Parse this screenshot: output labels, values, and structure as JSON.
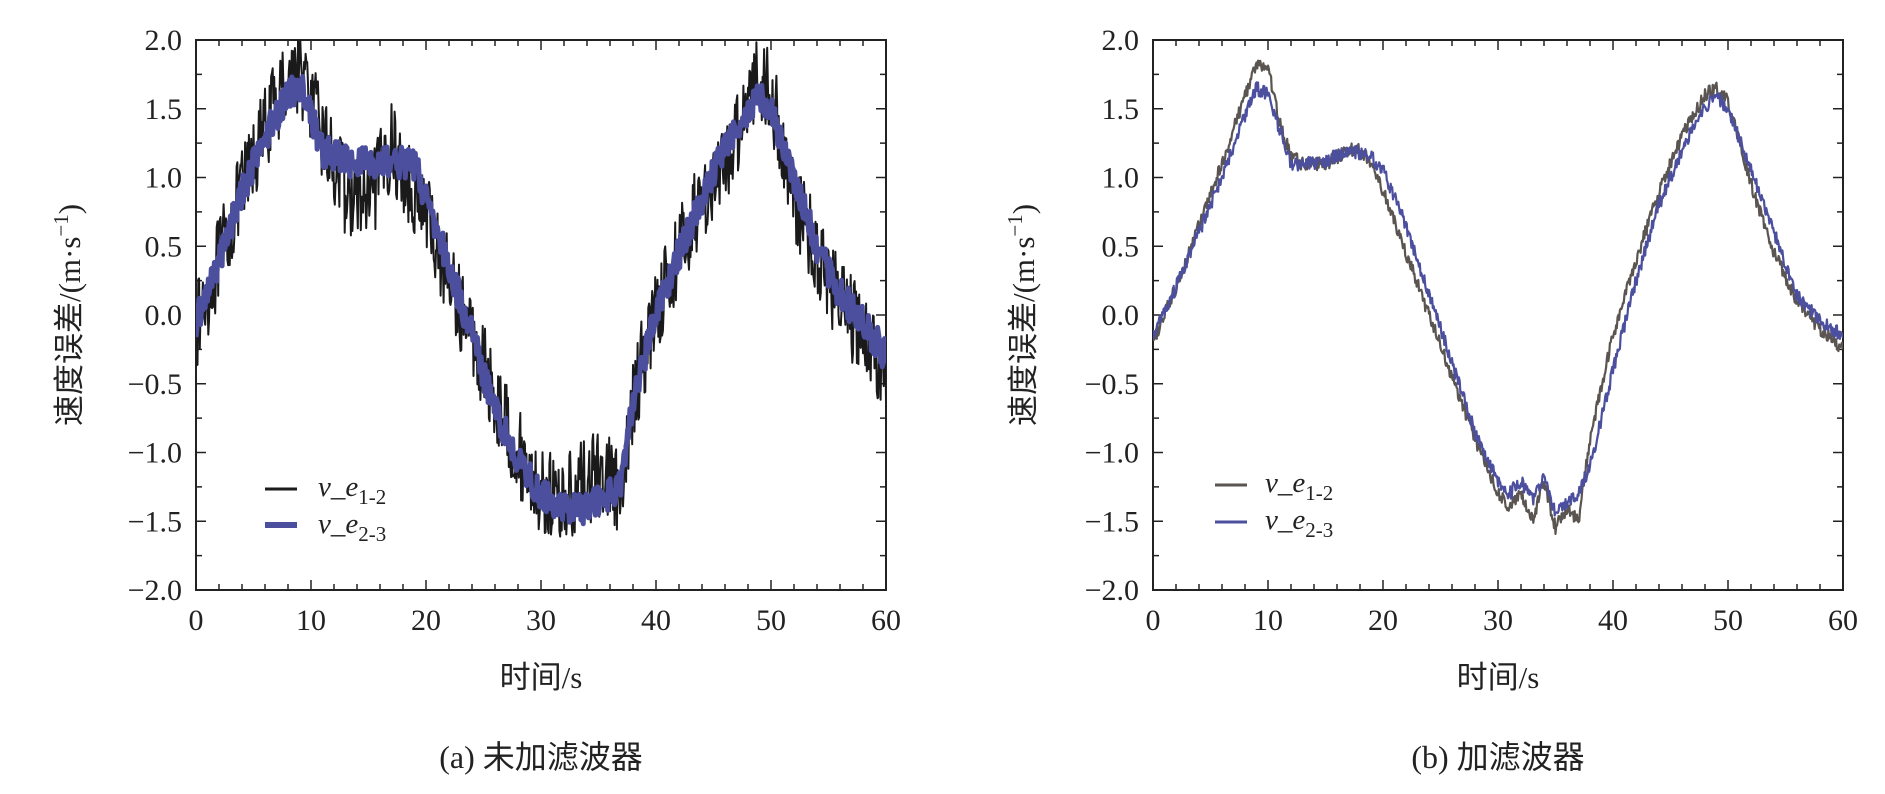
{
  "colors": {
    "series_raw": "#1a1a1a",
    "series_blue": "#4b4f9e",
    "series_dark_b": "#5a5550",
    "axis": "#222222"
  },
  "chart_data": [
    {
      "type": "line",
      "caption": "(a)  未加滤波器",
      "xlabel": "时间/s",
      "ylabel": "速度误差/(m·s",
      "ylabel_sup": "−1",
      "ylabel_close": ")",
      "xlim": [
        0,
        60
      ],
      "ylim": [
        -2.0,
        2.0
      ],
      "xticks": [
        0,
        10,
        20,
        30,
        40,
        50,
        60
      ],
      "xtick_labels": [
        "0",
        "10",
        "20",
        "30",
        "40",
        "50",
        "60"
      ],
      "yticks": [
        2.0,
        1.5,
        1.0,
        0.5,
        0.0,
        -0.5,
        -1.0,
        -1.5,
        -2.0
      ],
      "ytick_labels": [
        "2.0",
        "1.5",
        "1.0",
        "0.5",
        "0.0",
        "−0.5",
        "−1.0",
        "−1.5",
        "−2.0"
      ],
      "grid": false,
      "legend_position": "bottom-left",
      "series": [
        {
          "name": "v_e",
          "name_sub": "1-2",
          "color_key": "series_raw",
          "noise": 0.32,
          "x": [
            0,
            2,
            4,
            6,
            8,
            9,
            10,
            11,
            13,
            15,
            17,
            18,
            19,
            20,
            22,
            24,
            26,
            28,
            30,
            32,
            34,
            36,
            37,
            38,
            40,
            42,
            44,
            46,
            48,
            49,
            50,
            52,
            54,
            56,
            58,
            60
          ],
          "y": [
            -0.1,
            0.4,
            0.9,
            1.35,
            1.75,
            1.8,
            1.55,
            1.3,
            0.9,
            0.8,
            1.25,
            1.0,
            0.9,
            0.75,
            0.25,
            -0.15,
            -0.6,
            -1.0,
            -1.3,
            -1.35,
            -1.2,
            -1.15,
            -1.4,
            -0.6,
            0.05,
            0.45,
            0.85,
            1.05,
            1.6,
            1.75,
            1.6,
            0.85,
            0.45,
            0.1,
            -0.15,
            -0.4
          ]
        },
        {
          "name": "v_e",
          "name_sub": "2-3",
          "color_key": "series_blue",
          "noise": 0.12,
          "x": [
            0,
            2,
            4,
            6,
            8,
            9,
            10,
            11,
            13,
            15,
            17,
            19,
            20,
            22,
            24,
            26,
            28,
            30,
            32,
            34,
            36,
            37,
            38,
            40,
            42,
            44,
            46,
            48,
            49,
            50,
            52,
            54,
            56,
            58,
            60
          ],
          "y": [
            -0.05,
            0.4,
            0.9,
            1.3,
            1.6,
            1.68,
            1.45,
            1.2,
            1.12,
            1.12,
            1.12,
            1.1,
            0.85,
            0.35,
            -0.15,
            -0.7,
            -1.05,
            -1.3,
            -1.4,
            -1.4,
            -1.3,
            -1.25,
            -0.6,
            0.0,
            0.45,
            0.85,
            1.2,
            1.5,
            1.58,
            1.5,
            1.0,
            0.5,
            0.15,
            -0.05,
            -0.3
          ]
        }
      ]
    },
    {
      "type": "line",
      "caption": "(b)  加滤波器",
      "xlabel": "时间/s",
      "ylabel": "速度误差/(m·s",
      "ylabel_sup": "−1",
      "ylabel_close": ")",
      "xlim": [
        0,
        60
      ],
      "ylim": [
        -2.0,
        2.0
      ],
      "xticks": [
        0,
        10,
        20,
        30,
        40,
        50,
        60
      ],
      "xtick_labels": [
        "0",
        "10",
        "20",
        "30",
        "40",
        "50",
        "60"
      ],
      "yticks": [
        2.0,
        1.5,
        1.0,
        0.5,
        0.0,
        -0.5,
        -1.0,
        -1.5,
        -2.0
      ],
      "ytick_labels": [
        "2.0",
        "1.5",
        "1.0",
        "0.5",
        "0.0",
        "−0.5",
        "−1.0",
        "−1.5",
        "−2.0"
      ],
      "grid": false,
      "legend_position": "bottom-left",
      "series": [
        {
          "name": "v_e",
          "name_sub": "1-2",
          "color_key": "series_dark_b",
          "noise": 0.05,
          "x": [
            0,
            2,
            4,
            6,
            8,
            9,
            10,
            11,
            12,
            13,
            15,
            17,
            18,
            19,
            20,
            22,
            24,
            26,
            28,
            30,
            31,
            32,
            33,
            34,
            35,
            36,
            37,
            38,
            40,
            42,
            44,
            46,
            48,
            49,
            50,
            52,
            54,
            56,
            58,
            60
          ],
          "y": [
            -0.2,
            0.2,
            0.65,
            1.1,
            1.6,
            1.82,
            1.8,
            1.4,
            1.15,
            1.1,
            1.1,
            1.2,
            1.2,
            1.1,
            0.9,
            0.45,
            0.0,
            -0.45,
            -0.9,
            -1.3,
            -1.4,
            -1.3,
            -1.5,
            -1.2,
            -1.55,
            -1.4,
            -1.5,
            -0.9,
            -0.15,
            0.4,
            0.9,
            1.3,
            1.6,
            1.65,
            1.55,
            0.95,
            0.45,
            0.1,
            -0.1,
            -0.25
          ]
        },
        {
          "name": "v_e",
          "name_sub": "2-3",
          "color_key": "series_blue",
          "noise": 0.05,
          "x": [
            0,
            2,
            4,
            6,
            8,
            9,
            10,
            11,
            12,
            13,
            15,
            17,
            18,
            19,
            20,
            22,
            24,
            26,
            28,
            30,
            31,
            32,
            33,
            34,
            35,
            36,
            37,
            38,
            40,
            42,
            44,
            46,
            48,
            49,
            50,
            52,
            54,
            56,
            58,
            60
          ],
          "y": [
            -0.15,
            0.2,
            0.6,
            1.0,
            1.45,
            1.65,
            1.6,
            1.35,
            1.1,
            1.1,
            1.12,
            1.2,
            1.18,
            1.15,
            1.05,
            0.65,
            0.15,
            -0.35,
            -0.85,
            -1.2,
            -1.3,
            -1.2,
            -1.35,
            -1.15,
            -1.45,
            -1.35,
            -1.3,
            -1.1,
            -0.4,
            0.25,
            0.8,
            1.2,
            1.52,
            1.58,
            1.5,
            1.05,
            0.6,
            0.15,
            -0.05,
            -0.15
          ]
        }
      ]
    }
  ]
}
